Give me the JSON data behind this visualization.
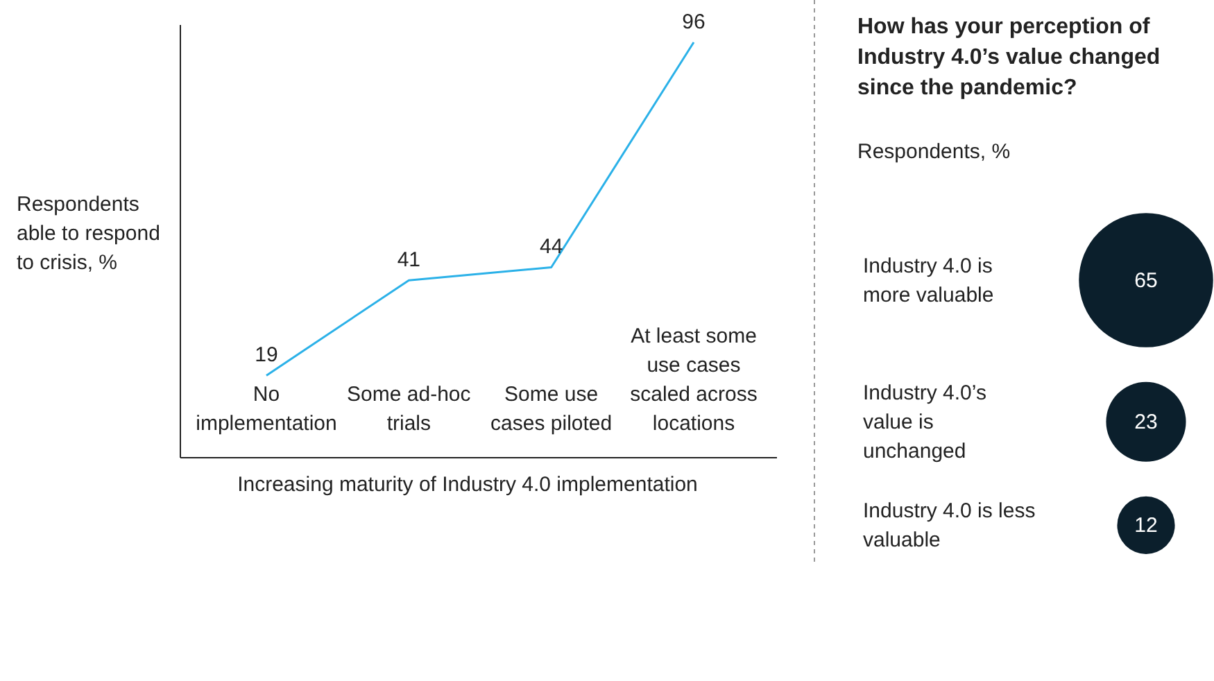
{
  "chart_data": [
    {
      "type": "line",
      "ylabel": "Respondents able to respond to crisis, %",
      "xlabel": "Increasing maturity of Industry 4.0 implementation",
      "categories": [
        "No implementation",
        "Some ad-hoc trials",
        "Some use cases piloted",
        "At least some use cases scaled across locations"
      ],
      "values": [
        19,
        41,
        44,
        96
      ],
      "color": "#2bb1e8",
      "ylim": [
        0,
        100
      ],
      "tick_labels": "x",
      "data_labels": true,
      "marker": "none"
    },
    {
      "type": "other",
      "title": "How has your perception of Industry 4.0’s value changed since the pandemic?",
      "subtitle": "Respondents, %",
      "categories": [
        "Industry 4.0 is more valuable",
        "Industry 4.0’s value is unchanged",
        "Industry 4.0 is less valuable"
      ],
      "values": [
        65,
        23,
        12
      ],
      "color": "#0b1f2c",
      "data_labels": true
    }
  ]
}
